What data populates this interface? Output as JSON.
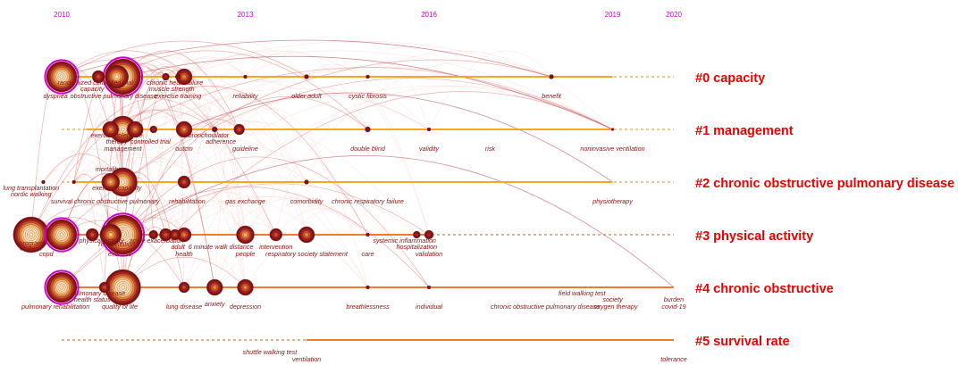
{
  "chart_data": {
    "type": "timeline",
    "title": "",
    "colors": {
      "year_labels": "#d400d4",
      "cluster_labels": "#ee0000",
      "keyword_labels": "#8a1414",
      "timeline_warm": "#f5a623",
      "timeline_hot": "#f07b2a",
      "arcs": "#d9534f",
      "node_ring": "#8b1a1a",
      "burst_ring": "#cc00cc"
    },
    "years": [
      "2010",
      "2013",
      "2016",
      "2019",
      "2020"
    ],
    "clusters": [
      {
        "id": "0",
        "label": "#0 capacity",
        "solid_from": 2010.2,
        "solid_to": 2019.0,
        "nodes": [
          {
            "t": 2010.0,
            "size": 17,
            "burst": true
          },
          {
            "t": 2010.6,
            "size": 7
          },
          {
            "t": 2010.9,
            "size": 13
          },
          {
            "t": 2011.0,
            "size": 20,
            "burst": true
          },
          {
            "t": 2011.7,
            "size": 4
          },
          {
            "t": 2011.9,
            "size": 3
          },
          {
            "t": 2012.0,
            "size": 9
          },
          {
            "t": 2013.0,
            "size": 2
          },
          {
            "t": 2014.0,
            "size": 2.5
          },
          {
            "t": 2015.0,
            "size": 2
          },
          {
            "t": 2018.0,
            "size": 2.5
          }
        ],
        "labels": [
          {
            "text": "randomized controlled trial",
            "t": 2010.55,
            "row": 1
          },
          {
            "text": "chronic heart failure",
            "t": 2011.85,
            "row": 1
          },
          {
            "text": "capacity",
            "t": 2010.5,
            "row": 2
          },
          {
            "text": "muscle strength",
            "t": 2011.8,
            "row": 2
          },
          {
            "text": "dyspnea",
            "t": 2009.9,
            "row": 3
          },
          {
            "text": "obstructive pulmonary disease",
            "t": 2010.85,
            "row": 3
          },
          {
            "text": "exercise training",
            "t": 2011.9,
            "row": 3
          },
          {
            "text": "reliability",
            "t": 2013.0,
            "row": 3
          },
          {
            "text": "older adult",
            "t": 2014.0,
            "row": 3
          },
          {
            "text": "cystic fibrosis",
            "t": 2015.0,
            "row": 3
          },
          {
            "text": "benefit",
            "t": 2018.0,
            "row": 3
          }
        ]
      },
      {
        "id": "1",
        "label": "#1 management",
        "solid_from": 2010.4,
        "solid_to": 2019.0,
        "nodes": [
          {
            "t": 2010.8,
            "size": 9
          },
          {
            "t": 2011.0,
            "size": 15
          },
          {
            "t": 2011.2,
            "size": 9
          },
          {
            "t": 2011.5,
            "size": 4
          },
          {
            "t": 2012.0,
            "size": 9
          },
          {
            "t": 2012.5,
            "size": 3
          },
          {
            "t": 2012.9,
            "size": 6
          },
          {
            "t": 2015.0,
            "size": 3
          },
          {
            "t": 2016.0,
            "size": 2
          },
          {
            "t": 2019.0,
            "size": 1.5
          }
        ],
        "labels": [
          {
            "text": "exercise tolerance",
            "t": 2010.9,
            "row": 1
          },
          {
            "text": "bronchodilator",
            "t": 2012.4,
            "row": 1
          },
          {
            "text": "therapy",
            "t": 2010.9,
            "row": 2
          },
          {
            "text": "controlled trial",
            "t": 2011.45,
            "row": 2
          },
          {
            "text": "adherence",
            "t": 2012.6,
            "row": 2
          },
          {
            "text": "management",
            "t": 2011.0,
            "row": 3
          },
          {
            "text": "outcm",
            "t": 2012.0,
            "row": 3
          },
          {
            "text": "guideline",
            "t": 2013.0,
            "row": 3
          },
          {
            "text": "double blind",
            "t": 2015.0,
            "row": 3
          },
          {
            "text": "validity",
            "t": 2016.0,
            "row": 3
          },
          {
            "text": "risk",
            "t": 2017.0,
            "row": 3
          },
          {
            "text": "noninvasive ventilation",
            "t": 2019.0,
            "row": 3
          }
        ]
      },
      {
        "id": "2",
        "label": "#2 chronic obstructive pulmonary disease",
        "solid_from": 2010.2,
        "solid_to": 2019.0,
        "nodes": [
          {
            "t": 2009.7,
            "size": 2
          },
          {
            "t": 2010.2,
            "size": 2
          },
          {
            "t": 2010.8,
            "size": 10
          },
          {
            "t": 2011.0,
            "size": 16
          },
          {
            "t": 2012.0,
            "size": 7
          },
          {
            "t": 2014.0,
            "size": 2.5
          }
        ],
        "labels": [
          {
            "text": "mortality",
            "t": 2010.75,
            "row": 0
          },
          {
            "text": "exercise capacity",
            "t": 2010.9,
            "row": 1
          },
          {
            "text": "lung transplantation",
            "t": 2009.5,
            "row": 1
          },
          {
            "text": "nordic walking",
            "t": 2009.5,
            "row": 2
          },
          {
            "text": "survival",
            "t": 2010.0,
            "row": 3
          },
          {
            "text": "chronic obstructive pulmonary",
            "t": 2010.9,
            "row": 3
          },
          {
            "text": "rehabilitation",
            "t": 2012.05,
            "row": 3
          },
          {
            "text": "gas exchange",
            "t": 2013.0,
            "row": 3
          },
          {
            "text": "comorbidity",
            "t": 2014.0,
            "row": 3
          },
          {
            "text": "chronic respiratory failure",
            "t": 2015.0,
            "row": 3
          },
          {
            "text": "physiotherapy",
            "t": 2019.0,
            "row": 3
          }
        ]
      },
      {
        "id": "3",
        "label": "#3 physical activity",
        "solid_from": 2010.0,
        "solid_to": 2016.0,
        "nodes": [
          {
            "t": 2009.5,
            "size": 20
          },
          {
            "t": 2010.0,
            "size": 17,
            "burst": true
          },
          {
            "t": 2010.5,
            "size": 7
          },
          {
            "t": 2010.8,
            "size": 12
          },
          {
            "t": 2011.0,
            "size": 22,
            "burst": true
          },
          {
            "t": 2011.5,
            "size": 5
          },
          {
            "t": 2011.7,
            "size": 7
          },
          {
            "t": 2011.85,
            "size": 6
          },
          {
            "t": 2012.0,
            "size": 8
          },
          {
            "t": 2013.0,
            "size": 10
          },
          {
            "t": 2013.5,
            "size": 7
          },
          {
            "t": 2014.0,
            "size": 9
          },
          {
            "t": 2015.0,
            "size": 2
          },
          {
            "t": 2015.8,
            "size": 4
          },
          {
            "t": 2016.0,
            "size": 5
          }
        ],
        "labels": [
          {
            "text": "physical activity",
            "t": 2010.65,
            "row": 1
          },
          {
            "text": "acute exacerbation",
            "t": 2011.55,
            "row": 1
          },
          {
            "text": "program",
            "t": 2009.5,
            "row": 1.4
          },
          {
            "text": "rehabilitation",
            "t": 2010.9,
            "row": 1.6
          },
          {
            "text": "disease",
            "t": 2009.5,
            "row": 2.2
          },
          {
            "text": "adult",
            "t": 2011.9,
            "row": 2
          },
          {
            "text": "6 minute walk distance",
            "t": 2012.6,
            "row": 2
          },
          {
            "text": "intervention",
            "t": 2013.5,
            "row": 2
          },
          {
            "text": "systemic inflammation",
            "t": 2015.6,
            "row": 1
          },
          {
            "text": "hospitalization",
            "t": 2015.8,
            "row": 2
          },
          {
            "text": "copd",
            "t": 2009.75,
            "row": 3
          },
          {
            "text": "exercise",
            "t": 2010.95,
            "row": 3
          },
          {
            "text": "health",
            "t": 2012.0,
            "row": 3
          },
          {
            "text": "people",
            "t": 2013.0,
            "row": 3
          },
          {
            "text": "respiratory society statement",
            "t": 2014.0,
            "row": 3
          },
          {
            "text": "care",
            "t": 2015.0,
            "row": 3
          },
          {
            "text": "validation",
            "t": 2016.0,
            "row": 3
          }
        ]
      },
      {
        "id": "4",
        "label": "#4 chronic obstructive",
        "solid_from": 2010.2,
        "solid_to": 2020.0,
        "nodes": [
          {
            "t": 2010.0,
            "size": 17,
            "burst": true
          },
          {
            "t": 2010.7,
            "size": 6
          },
          {
            "t": 2011.0,
            "size": 20
          },
          {
            "t": 2012.0,
            "size": 6
          },
          {
            "t": 2012.5,
            "size": 9
          },
          {
            "t": 2013.0,
            "size": 9
          },
          {
            "t": 2015.0,
            "size": 2
          },
          {
            "t": 2016.0,
            "size": 2
          }
        ],
        "labels": [
          {
            "text": "pulmonary disease",
            "t": 2010.6,
            "row": 1
          },
          {
            "text": "health status",
            "t": 2010.5,
            "row": 2
          },
          {
            "text": "pulmonary rehabilitation",
            "t": 2009.9,
            "row": 3
          },
          {
            "text": "quality of life",
            "t": 2010.95,
            "row": 3
          },
          {
            "text": "lung disease",
            "t": 2012.0,
            "row": 3
          },
          {
            "text": "anxiety",
            "t": 2012.5,
            "row": 2.6
          },
          {
            "text": "depression",
            "t": 2013.0,
            "row": 3
          },
          {
            "text": "breathlessness",
            "t": 2015.0,
            "row": 3
          },
          {
            "text": "individual",
            "t": 2016.0,
            "row": 3
          },
          {
            "text": "field walking test",
            "t": 2018.5,
            "row": 1
          },
          {
            "text": "society",
            "t": 2019.0,
            "row": 2
          },
          {
            "text": "chronic obstructive pulmonary disease",
            "t": 2017.9,
            "row": 3
          },
          {
            "text": "oxygen therapy",
            "t": 2019.05,
            "row": 3
          },
          {
            "text": "burden",
            "t": 2020.0,
            "row": 2
          },
          {
            "text": "covid-19",
            "t": 2020.0,
            "row": 3
          }
        ]
      },
      {
        "id": "5",
        "label": "#5 survival rate",
        "solid_from": 2014.0,
        "solid_to": 2020.0,
        "nodes": [],
        "labels": [
          {
            "text": "shuttle walking test",
            "t": 2013.4,
            "row": 2
          },
          {
            "text": "ventilation",
            "t": 2014.0,
            "row": 3
          },
          {
            "text": "tolerance",
            "t": 2020.0,
            "row": 3
          }
        ]
      }
    ]
  }
}
